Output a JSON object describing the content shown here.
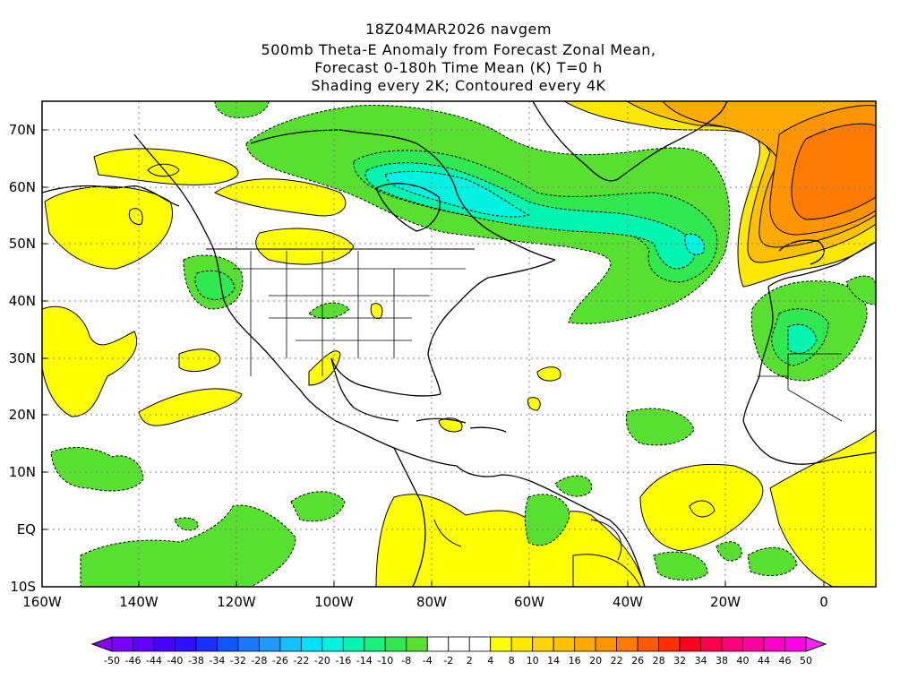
{
  "title": {
    "line1": "18Z04MAR2026 navgem",
    "line2": "500mb Theta-E Anomaly from Forecast Zonal Mean,",
    "line3": "Forecast 0-180h Time Mean (K) T=0 h",
    "line4": "Shading every 2K; Contoured every 4K"
  },
  "axes": {
    "lat_labels": [
      "70N",
      "60N",
      "50N",
      "40N",
      "30N",
      "20N",
      "10N",
      "EQ",
      "10S"
    ],
    "lon_labels": [
      "160W",
      "140W",
      "120W",
      "100W",
      "80W",
      "60W",
      "40W",
      "20W",
      "0"
    ]
  },
  "colorbar": {
    "labels": [
      "-50",
      "-46",
      "-44",
      "-40",
      "-38",
      "-34",
      "-32",
      "-28",
      "-26",
      "-22",
      "-20",
      "-16",
      "-14",
      "-10",
      "-8",
      "-4",
      "-2",
      "2",
      "4",
      "8",
      "10",
      "14",
      "16",
      "20",
      "22",
      "26",
      "28",
      "32",
      "34",
      "38",
      "40",
      "44",
      "46",
      "50"
    ],
    "colors": [
      "#8a00ff",
      "#7a00ff",
      "#6000ff",
      "#4800ff",
      "#2e10ff",
      "#1a2eff",
      "#1055ff",
      "#1a78ff",
      "#1f9bff",
      "#15c0ff",
      "#00e0ff",
      "#00f2e0",
      "#00f5b0",
      "#18f080",
      "#30e850",
      "#58e030",
      "#ffffff",
      "#ffffff",
      "#ffffff",
      "#ffff00",
      "#ffe800",
      "#ffd400",
      "#ffc000",
      "#ffaa00",
      "#ff9400",
      "#ff7a00",
      "#ff5a00",
      "#ff3000",
      "#ff0020",
      "#ff0050",
      "#ff0078",
      "#ff00a0",
      "#ff00c8",
      "#ff00e8",
      "#ff20ff"
    ]
  }
}
